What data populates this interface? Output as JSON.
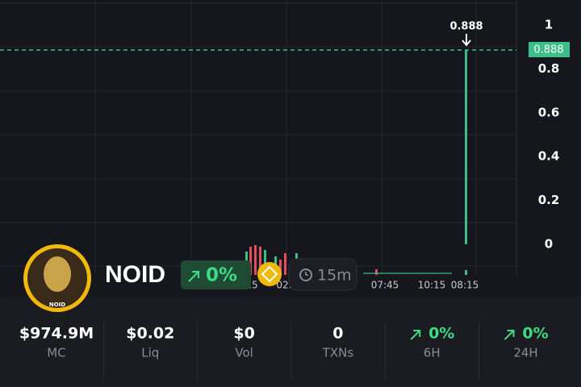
{
  "chart": {
    "yticks": [
      "1",
      "0.8",
      "0.6",
      "0.4",
      "0.2",
      "0"
    ],
    "price_label": "0.888",
    "annotation": "0.888",
    "time_labels": [
      "15",
      "02:",
      "07:45",
      "10:15",
      "08:15"
    ]
  },
  "token": {
    "name": "NOID",
    "avatar_text": "NOID",
    "change": "0%",
    "interval": "15m"
  },
  "stats": [
    {
      "value": "$974.9M",
      "label": "MC"
    },
    {
      "value": "$0.02",
      "label": "Liq"
    },
    {
      "value": "$0",
      "label": "Vol"
    },
    {
      "value": "0",
      "label": "TXNs"
    },
    {
      "value": "0%",
      "label": "6H"
    },
    {
      "value": "0%",
      "label": "24H"
    }
  ]
}
